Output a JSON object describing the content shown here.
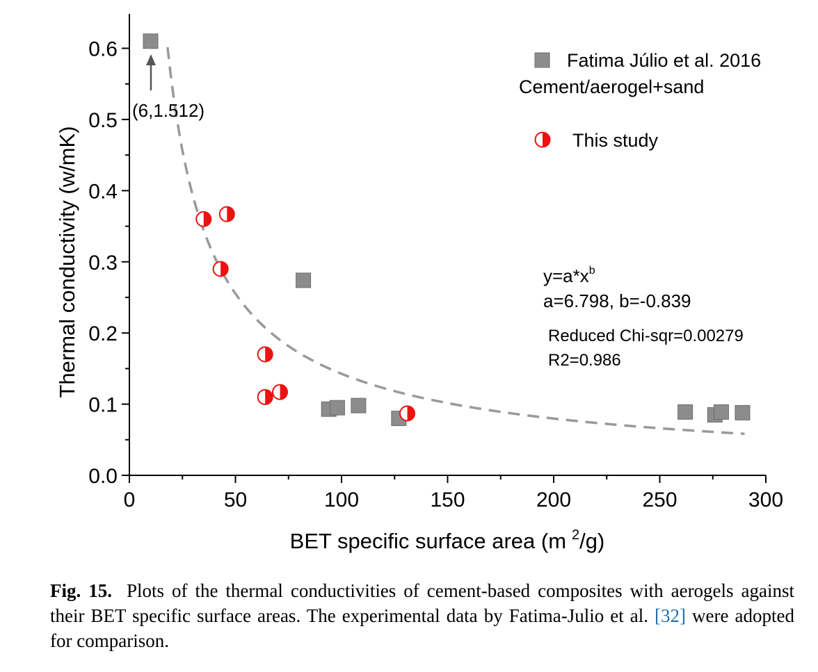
{
  "chart_data": {
    "type": "scatter",
    "xlabel": "BET specific surface area (m ²/g)",
    "xlabel_main": "BET specific surface area (m",
    "xlabel_sup": "2",
    "xlabel_end": "/g)",
    "ylabel": "Thermal conductivity (w/mK)",
    "xlim": [
      0,
      300
    ],
    "ylim": [
      0,
      0.6
    ],
    "x_ticks": [
      0,
      50,
      100,
      150,
      200,
      250,
      300
    ],
    "x_tick_labels": [
      "0",
      "50",
      "100",
      "150",
      "200",
      "250",
      "300"
    ],
    "y_ticks": [
      0.0,
      0.1,
      0.2,
      0.3,
      0.4,
      0.5,
      0.6
    ],
    "y_tick_labels": [
      "0.0",
      "0.1",
      "0.2",
      "0.3",
      "0.4",
      "0.5",
      "0.6"
    ],
    "grid": false,
    "legend_position": "top-right",
    "series": [
      {
        "name": "Fatima Júlio et al. 2016",
        "name_line2": "Cement/aerogel+sand",
        "marker": "square",
        "color": "#8c8c8c",
        "points": [
          {
            "x": 10,
            "y": 0.61
          },
          {
            "x": 82,
            "y": 0.274
          },
          {
            "x": 94,
            "y": 0.093
          },
          {
            "x": 98,
            "y": 0.095
          },
          {
            "x": 108,
            "y": 0.098
          },
          {
            "x": 127,
            "y": 0.08
          },
          {
            "x": 262,
            "y": 0.089
          },
          {
            "x": 276,
            "y": 0.085
          },
          {
            "x": 279,
            "y": 0.089
          },
          {
            "x": 289,
            "y": 0.088
          }
        ]
      },
      {
        "name": "This study",
        "marker": "half-filled-circle",
        "color": "#ee1111",
        "points": [
          {
            "x": 35,
            "y": 0.36
          },
          {
            "x": 46,
            "y": 0.367
          },
          {
            "x": 43,
            "y": 0.29
          },
          {
            "x": 64,
            "y": 0.17
          },
          {
            "x": 64,
            "y": 0.11
          },
          {
            "x": 71,
            "y": 0.117
          },
          {
            "x": 131,
            "y": 0.087
          }
        ]
      }
    ],
    "fit": {
      "type": "power",
      "a": 6.798,
      "b": -0.839,
      "x_range": [
        18,
        290
      ],
      "color": "#999999",
      "style": "dashed"
    },
    "annotations": {
      "arrow_label": "(6,1.512)",
      "eq_main": "y=a*x",
      "eq_sup": "b",
      "params": "a=6.798, b=-0.839",
      "chi": "Reduced Chi-sqr=0.00279",
      "r2": "R2=0.986"
    }
  },
  "caption": {
    "label": "Fig. 15.",
    "text_before_ref": "Plots of the thermal conductivities of cement-based composites with aerogels against their BET specific surface areas. The experimental data by Fatima-Julio et al.",
    "ref": "[32]",
    "text_after_ref": "were adopted for comparison."
  }
}
